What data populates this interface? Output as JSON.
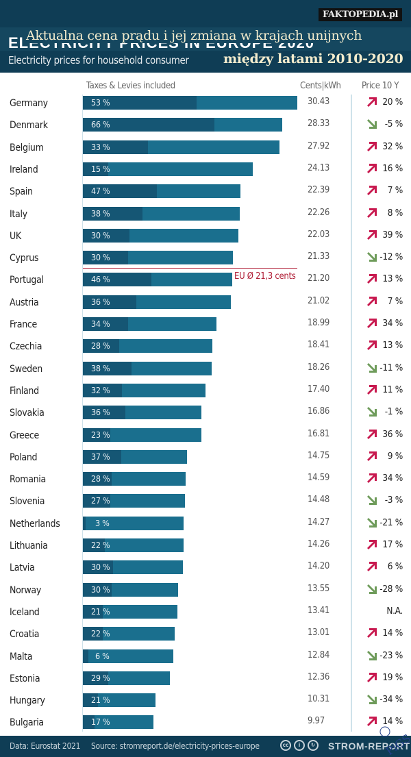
{
  "header": {
    "brand": "FAKTOPEDIA.pl",
    "ghost_title": "ELECTRICITY PRICES IN EUROPE 2020",
    "overlay_title": "Aktualna cena prądu i jej zmiana w krajach unijnych",
    "subtitle": "Electricity prices for household consumer",
    "overlay_subtitle": "między latami 2010-2020"
  },
  "columns": {
    "taxes": "Taxes & Levies included",
    "price": "Cents|kWh",
    "change": "Price 10 Y"
  },
  "colors": {
    "bar": "#1a6f8e",
    "tax": "#155674",
    "up": "#c8194f",
    "down": "#6e9b5a",
    "eu_line": "#b01d35"
  },
  "chart_data": {
    "type": "bar",
    "orientation": "horizontal",
    "title": "Aktualna cena prądu i jej zmiana w krajach unijnych między latami 2010-2020",
    "subtitle": "Electricity prices for household consumer",
    "xlabel": "Cents|kWh",
    "xlim": [
      0,
      30.43
    ],
    "reference_line": {
      "value": 21.3,
      "label": "EU Ø 21,3 cents"
    },
    "categories": [
      "Germany",
      "Denmark",
      "Belgium",
      "Ireland",
      "Spain",
      "Italy",
      "UK",
      "Cyprus",
      "Portugal",
      "Austria",
      "France",
      "Czechia",
      "Sweden",
      "Finland",
      "Slovakia",
      "Greece",
      "Poland",
      "Romania",
      "Slovenia",
      "Netherlands",
      "Lithuania",
      "Latvia",
      "Norway",
      "Iceland",
      "Croatia",
      "Malta",
      "Estonia",
      "Hungary",
      "Bulgaria"
    ],
    "series": [
      {
        "name": "Cents|kWh",
        "values": [
          30.43,
          28.33,
          27.92,
          24.13,
          22.39,
          22.26,
          22.03,
          21.33,
          21.2,
          21.02,
          18.99,
          18.41,
          18.26,
          17.4,
          16.86,
          16.81,
          14.75,
          14.59,
          14.48,
          14.27,
          14.26,
          14.2,
          13.55,
          13.41,
          13.01,
          12.84,
          12.36,
          10.31,
          9.97
        ],
        "labels": [
          "30.43",
          "28.33",
          "27.92",
          "24.13",
          "22.39",
          "22.26",
          "22.03",
          "21.33",
          "21.20",
          "21.02",
          "18.99",
          "18.41",
          "18.26",
          "17.40",
          "16.86",
          "16.81",
          "14.75",
          "14.59",
          "14.48",
          "14.27",
          "14.26",
          "14.20",
          "13.55",
          "13.41",
          "13.01",
          "12.84",
          "12.36",
          "10.31",
          "9.97"
        ]
      },
      {
        "name": "Taxes & Levies included (%)",
        "values": [
          53,
          66,
          33,
          15,
          47,
          38,
          30,
          30,
          46,
          36,
          34,
          28,
          38,
          32,
          36,
          23,
          37,
          28,
          27,
          3,
          22,
          30,
          30,
          21,
          22,
          6,
          29,
          21,
          17
        ]
      },
      {
        "name": "Price 10 Y change",
        "labels": [
          "20 %",
          "-5 %",
          "32 %",
          "16 %",
          "7 %",
          "8 %",
          "39 %",
          "-12 %",
          "13 %",
          "7 %",
          "34 %",
          "13 %",
          "-11 %",
          "11 %",
          "-1 %",
          "36 %",
          "9 %",
          "34 %",
          "-3 %",
          "-21 %",
          "17 %",
          "6 %",
          "-28 %",
          "N.A.",
          "14 %",
          "-23 %",
          "19 %",
          "-34 %",
          "14 %"
        ],
        "direction": [
          "up",
          "down",
          "up",
          "up",
          "up",
          "up",
          "up",
          "down",
          "up",
          "up",
          "up",
          "up",
          "down",
          "up",
          "down",
          "up",
          "up",
          "up",
          "down",
          "down",
          "up",
          "up",
          "down",
          "none",
          "up",
          "down",
          "up",
          "down",
          "up"
        ]
      }
    ]
  },
  "footer": {
    "data": "Data: Eurostat 2021",
    "source": "Source: stromreport.de/electricity-prices-europe",
    "cc": "cc",
    "by": "i",
    "sa": "↻",
    "brand": "STROM-REPORT"
  }
}
